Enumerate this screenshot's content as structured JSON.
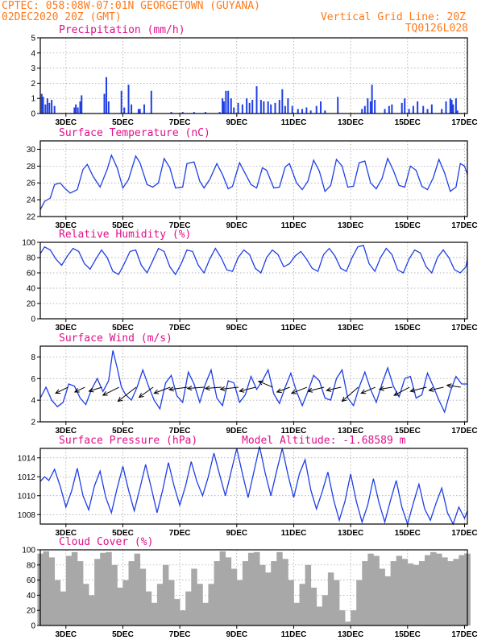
{
  "header": {
    "line1": "CPTEC:  058:08W-07:01N  GEORGETOWN (GUYANA)",
    "line2_left": "02DEC2020 20Z (GMT)",
    "line2_right": "Vertical Grid Line: 20Z",
    "line3_right": "TQ0126L028"
  },
  "colors": {
    "header_text": "#ff7a1a",
    "title_text": "#e0108a",
    "series_line": "#1f3fe6",
    "cloud_fill": "#a8a8a8",
    "wind_arrow": "#000000"
  },
  "x_axis": {
    "ticks": [
      "3DEC",
      "5DEC",
      "7DEC",
      "9DEC",
      "11DEC",
      "13DEC",
      "15DEC",
      "17DEC"
    ],
    "tick_days": [
      3,
      5,
      7,
      9,
      11,
      13,
      15,
      17
    ],
    "range_days": [
      2.1,
      17.1
    ],
    "grid": "vertical dotted at 20Z"
  },
  "chart_data": [
    {
      "id": "precipitation",
      "type": "bar",
      "title": "Precipitation (mm/h)",
      "ylim": [
        0,
        5
      ],
      "yticks": [
        0,
        1,
        2,
        3,
        4,
        5
      ],
      "grid": true,
      "x": [
        2.15,
        2.2,
        2.28,
        2.35,
        2.42,
        2.5,
        2.6,
        3.3,
        3.35,
        3.42,
        3.5,
        3.55,
        4.35,
        4.42,
        4.5,
        4.95,
        5.05,
        5.2,
        5.3,
        5.55,
        5.6,
        5.75,
        6.0,
        6.7,
        7.1,
        7.5,
        7.9,
        8.4,
        8.5,
        8.55,
        8.62,
        8.7,
        8.8,
        8.9,
        9.05,
        9.2,
        9.35,
        9.45,
        9.55,
        9.7,
        9.85,
        9.95,
        10.1,
        10.2,
        10.35,
        10.5,
        10.6,
        10.7,
        10.8,
        10.95,
        11.15,
        11.3,
        11.45,
        11.6,
        11.8,
        11.95,
        12.1,
        12.55,
        13.4,
        13.5,
        13.6,
        13.7,
        13.75,
        13.85,
        14.2,
        14.35,
        14.45,
        14.8,
        14.9,
        15.05,
        15.2,
        15.35,
        15.55,
        15.7,
        15.85,
        16.2,
        16.35,
        16.5,
        16.55,
        16.6,
        16.7,
        16.75
      ],
      "values": [
        1.3,
        1.1,
        0.6,
        1.0,
        0.7,
        0.9,
        0.5,
        0.4,
        0.6,
        0.4,
        0.8,
        1.2,
        1.3,
        2.4,
        0.8,
        1.5,
        0.4,
        1.9,
        0.6,
        0.3,
        0.3,
        0.6,
        1.5,
        0.1,
        0.1,
        0.1,
        0.1,
        0.1,
        1.0,
        0.8,
        1.5,
        1.5,
        1.0,
        0.4,
        0.7,
        0.6,
        1.0,
        0.7,
        0.9,
        1.8,
        0.9,
        0.8,
        0.8,
        0.6,
        0.7,
        0.9,
        1.6,
        0.5,
        1.0,
        0.5,
        0.3,
        0.3,
        0.4,
        0.2,
        0.5,
        0.8,
        0.2,
        1.1,
        0.3,
        0.5,
        1.0,
        0.8,
        1.9,
        0.9,
        0.3,
        0.5,
        0.6,
        0.7,
        1.0,
        0.3,
        0.5,
        0.8,
        0.5,
        0.3,
        0.6,
        0.3,
        0.8,
        1.0,
        0.9,
        0.6,
        1.0,
        0.2
      ]
    },
    {
      "id": "temperature",
      "type": "line",
      "title": "Surface Temperature (nC)",
      "ylim": [
        22,
        31
      ],
      "yticks": [
        22,
        24,
        26,
        28,
        30
      ],
      "grid": true,
      "x": [
        2.1,
        2.25,
        2.45,
        2.6,
        2.8,
        2.95,
        3.15,
        3.4,
        3.6,
        3.75,
        3.95,
        4.2,
        4.45,
        4.6,
        4.8,
        5.0,
        5.2,
        5.45,
        5.6,
        5.85,
        6.05,
        6.25,
        6.45,
        6.65,
        6.85,
        7.1,
        7.25,
        7.5,
        7.7,
        7.85,
        8.05,
        8.3,
        8.5,
        8.7,
        8.85,
        9.1,
        9.3,
        9.5,
        9.7,
        9.9,
        10.05,
        10.3,
        10.5,
        10.7,
        10.85,
        11.1,
        11.3,
        11.5,
        11.7,
        11.9,
        12.1,
        12.3,
        12.5,
        12.7,
        12.9,
        13.1,
        13.3,
        13.5,
        13.7,
        13.9,
        14.1,
        14.3,
        14.5,
        14.7,
        14.9,
        15.1,
        15.3,
        15.5,
        15.7,
        15.9,
        16.1,
        16.3,
        16.5,
        16.7,
        16.85,
        17.0,
        17.1
      ],
      "values": [
        22.8,
        23.8,
        24.2,
        25.8,
        26.0,
        25.4,
        24.8,
        25.2,
        27.6,
        28.2,
        26.8,
        25.5,
        27.6,
        29.3,
        27.8,
        25.4,
        26.4,
        29.2,
        28.4,
        25.8,
        25.5,
        26.0,
        28.9,
        27.8,
        25.4,
        25.5,
        28.3,
        28.5,
        26.2,
        25.4,
        26.4,
        28.3,
        27.0,
        25.3,
        25.6,
        28.4,
        27.1,
        25.8,
        25.4,
        27.8,
        27.5,
        25.4,
        25.5,
        27.9,
        28.3,
        26.0,
        25.2,
        26.2,
        28.7,
        27.4,
        25.0,
        25.7,
        28.8,
        28.0,
        25.5,
        25.6,
        28.4,
        28.6,
        26.0,
        25.3,
        26.5,
        28.9,
        27.5,
        25.7,
        25.5,
        28.0,
        27.5,
        25.6,
        25.2,
        26.6,
        28.8,
        27.2,
        25.0,
        25.5,
        28.3,
        28.0,
        27.0
      ]
    },
    {
      "id": "humidity",
      "type": "line",
      "title": "Relative Humidity (%)",
      "ylim": [
        0,
        100
      ],
      "yticks": [
        0,
        20,
        40,
        60,
        80,
        100
      ],
      "grid": true,
      "x": [
        2.1,
        2.25,
        2.45,
        2.65,
        2.85,
        3.05,
        3.25,
        3.45,
        3.65,
        3.85,
        4.05,
        4.25,
        4.45,
        4.65,
        4.85,
        5.05,
        5.25,
        5.45,
        5.65,
        5.85,
        6.05,
        6.25,
        6.45,
        6.65,
        6.85,
        7.05,
        7.25,
        7.45,
        7.65,
        7.85,
        8.05,
        8.25,
        8.45,
        8.65,
        8.85,
        9.05,
        9.25,
        9.45,
        9.65,
        9.85,
        10.05,
        10.25,
        10.45,
        10.65,
        10.85,
        11.05,
        11.25,
        11.45,
        11.65,
        11.85,
        12.05,
        12.25,
        12.45,
        12.65,
        12.85,
        13.05,
        13.25,
        13.45,
        13.65,
        13.85,
        14.05,
        14.25,
        14.45,
        14.65,
        14.85,
        15.05,
        15.25,
        15.45,
        15.65,
        15.85,
        16.05,
        16.25,
        16.45,
        16.65,
        16.85,
        17.05,
        17.1
      ],
      "values": [
        85,
        94,
        90,
        78,
        70,
        82,
        92,
        88,
        72,
        65,
        78,
        90,
        80,
        62,
        58,
        72,
        88,
        90,
        70,
        60,
        76,
        92,
        88,
        68,
        58,
        72,
        90,
        88,
        70,
        60,
        78,
        92,
        80,
        64,
        62,
        80,
        90,
        84,
        66,
        60,
        80,
        90,
        84,
        68,
        72,
        82,
        88,
        78,
        66,
        62,
        84,
        92,
        82,
        66,
        62,
        80,
        94,
        96,
        72,
        62,
        80,
        92,
        84,
        64,
        60,
        78,
        90,
        86,
        68,
        60,
        80,
        90,
        80,
        64,
        60,
        68,
        78
      ]
    },
    {
      "id": "wind",
      "type": "line",
      "title": "Surface Wind (m/s)",
      "ylim": [
        2,
        9
      ],
      "yticks": [
        2,
        4,
        6,
        8
      ],
      "grid": true,
      "x": [
        2.1,
        2.3,
        2.5,
        2.7,
        2.9,
        3.1,
        3.3,
        3.5,
        3.7,
        3.9,
        4.1,
        4.3,
        4.5,
        4.65,
        4.8,
        4.95,
        5.1,
        5.3,
        5.5,
        5.7,
        5.9,
        6.1,
        6.3,
        6.5,
        6.7,
        6.9,
        7.1,
        7.3,
        7.5,
        7.7,
        7.9,
        8.1,
        8.3,
        8.5,
        8.7,
        8.9,
        9.1,
        9.3,
        9.5,
        9.7,
        9.9,
        10.1,
        10.3,
        10.5,
        10.7,
        10.9,
        11.1,
        11.3,
        11.5,
        11.7,
        11.9,
        12.1,
        12.3,
        12.5,
        12.7,
        12.9,
        13.1,
        13.3,
        13.5,
        13.7,
        13.9,
        14.1,
        14.3,
        14.5,
        14.7,
        14.9,
        15.1,
        15.3,
        15.5,
        15.7,
        15.9,
        16.1,
        16.3,
        16.5,
        16.7,
        16.9,
        17.1
      ],
      "values": [
        4.2,
        5.2,
        4.0,
        3.4,
        3.8,
        5.5,
        5.3,
        4.2,
        3.6,
        5.0,
        6.0,
        4.8,
        5.8,
        8.6,
        7.0,
        5.2,
        4.5,
        4.0,
        5.2,
        6.8,
        5.3,
        4.0,
        3.2,
        5.6,
        6.3,
        4.4,
        3.8,
        6.6,
        5.5,
        3.8,
        5.5,
        6.8,
        4.2,
        3.5,
        5.8,
        5.6,
        3.8,
        4.5,
        6.2,
        5.0,
        5.8,
        6.8,
        4.6,
        3.7,
        5.2,
        6.5,
        4.8,
        3.5,
        4.8,
        6.3,
        5.8,
        4.2,
        4.0,
        6.0,
        6.8,
        4.2,
        3.5,
        5.2,
        6.6,
        5.0,
        3.8,
        5.5,
        7.0,
        5.3,
        4.3,
        6.0,
        6.2,
        4.2,
        4.5,
        6.5,
        5.3,
        4.0,
        2.9,
        4.8,
        6.2,
        5.5,
        5.5
      ],
      "arrows": {
        "x": [
          2.5,
          3.1,
          3.7,
          4.3,
          4.9,
          5.5,
          6.1,
          6.7,
          7.3,
          7.9,
          8.5,
          9.1,
          9.7,
          10.3,
          10.9,
          11.5,
          12.1,
          12.7,
          13.3,
          13.9,
          14.5,
          15.1,
          15.7,
          16.3
        ],
        "u": [
          -3.0,
          -2.5,
          -3.2,
          -4.0,
          -4.5,
          -3.5,
          -4.0,
          -4.5,
          -4.2,
          -4.0,
          -4.5,
          -4.0,
          -3.5,
          -3.2,
          -3.8,
          -4.0,
          -3.6,
          -4.0,
          -3.5,
          -3.2,
          -3.8,
          -4.0,
          -3.6,
          -3.4
        ],
        "v": [
          -1.5,
          -1.2,
          -1.0,
          -2.0,
          -3.5,
          -2.5,
          -1.5,
          -0.6,
          -0.3,
          -0.3,
          -0.5,
          -1.0,
          1.5,
          -1.2,
          -1.5,
          -1.0,
          -0.8,
          -3.5,
          -1.5,
          -0.5,
          -2.0,
          -1.0,
          -0.8,
          0.5
        ]
      }
    },
    {
      "id": "pressure",
      "type": "line",
      "title": "Surface Pressure (hPa)",
      "annotation": "Model Altitude: -1.68589 m",
      "ylim": [
        1007,
        1015
      ],
      "yticks": [
        1008,
        1010,
        1012,
        1014
      ],
      "grid": true,
      "x": [
        2.1,
        2.25,
        2.4,
        2.6,
        2.8,
        3.0,
        3.2,
        3.4,
        3.6,
        3.8,
        4.0,
        4.2,
        4.4,
        4.6,
        4.8,
        5.0,
        5.2,
        5.4,
        5.6,
        5.8,
        6.0,
        6.2,
        6.4,
        6.6,
        6.8,
        7.0,
        7.2,
        7.4,
        7.6,
        7.8,
        8.0,
        8.2,
        8.4,
        8.6,
        8.8,
        9.0,
        9.2,
        9.4,
        9.6,
        9.8,
        10.0,
        10.2,
        10.4,
        10.6,
        10.8,
        11.0,
        11.2,
        11.4,
        11.6,
        11.8,
        12.0,
        12.2,
        12.4,
        12.6,
        12.8,
        13.0,
        13.2,
        13.4,
        13.6,
        13.8,
        14.0,
        14.2,
        14.4,
        14.6,
        14.8,
        15.0,
        15.2,
        15.4,
        15.6,
        15.8,
        16.0,
        16.2,
        16.4,
        16.6,
        16.8,
        17.0,
        17.1
      ],
      "values": [
        1011.5,
        1012.0,
        1011.6,
        1012.8,
        1011.0,
        1008.8,
        1010.5,
        1012.9,
        1010.0,
        1008.5,
        1011.0,
        1012.6,
        1009.8,
        1008.2,
        1010.8,
        1013.1,
        1010.6,
        1008.4,
        1010.8,
        1013.3,
        1010.8,
        1008.2,
        1010.6,
        1013.5,
        1011.0,
        1009.0,
        1011.0,
        1013.6,
        1011.5,
        1010.0,
        1012.0,
        1014.5,
        1012.2,
        1010.0,
        1012.5,
        1015.0,
        1012.3,
        1009.8,
        1012.5,
        1015.2,
        1012.4,
        1010.0,
        1012.6,
        1015.0,
        1012.2,
        1009.8,
        1012.3,
        1013.8,
        1010.6,
        1008.6,
        1010.4,
        1012.5,
        1009.6,
        1007.4,
        1009.4,
        1012.3,
        1009.4,
        1007.2,
        1009.0,
        1011.8,
        1009.2,
        1007.2,
        1009.5,
        1011.6,
        1008.8,
        1007.0,
        1009.2,
        1011.2,
        1008.6,
        1007.4,
        1009.2,
        1010.8,
        1008.2,
        1007.0,
        1008.8,
        1007.6,
        1008.4
      ]
    },
    {
      "id": "cloud",
      "type": "area",
      "title": "Cloud Cover (%)",
      "ylim": [
        0,
        100
      ],
      "yticks": [
        0,
        20,
        40,
        60,
        80,
        100
      ],
      "grid": true,
      "x": [
        2.1,
        2.3,
        2.5,
        2.7,
        2.9,
        3.1,
        3.3,
        3.5,
        3.7,
        3.9,
        4.1,
        4.3,
        4.5,
        4.7,
        4.9,
        5.1,
        5.3,
        5.5,
        5.7,
        5.9,
        6.1,
        6.3,
        6.5,
        6.7,
        6.9,
        7.1,
        7.3,
        7.5,
        7.7,
        7.9,
        8.1,
        8.3,
        8.5,
        8.7,
        8.9,
        9.1,
        9.3,
        9.5,
        9.7,
        9.9,
        10.1,
        10.3,
        10.5,
        10.7,
        10.9,
        11.1,
        11.3,
        11.5,
        11.7,
        11.9,
        12.1,
        12.3,
        12.5,
        12.7,
        12.9,
        13.1,
        13.3,
        13.5,
        13.7,
        13.9,
        14.1,
        14.3,
        14.5,
        14.7,
        14.9,
        15.1,
        15.3,
        15.5,
        15.7,
        15.9,
        16.1,
        16.3,
        16.5,
        16.7,
        16.9,
        17.1
      ],
      "values": [
        95,
        98,
        90,
        60,
        45,
        92,
        97,
        85,
        55,
        40,
        88,
        96,
        97,
        80,
        50,
        60,
        85,
        95,
        75,
        45,
        30,
        55,
        80,
        60,
        35,
        20,
        45,
        75,
        55,
        30,
        55,
        85,
        98,
        90,
        75,
        60,
        85,
        96,
        97,
        80,
        70,
        85,
        97,
        88,
        60,
        30,
        55,
        80,
        50,
        25,
        40,
        70,
        60,
        20,
        5,
        20,
        60,
        85,
        95,
        92,
        75,
        65,
        85,
        92,
        88,
        82,
        80,
        85,
        93,
        97,
        95,
        90,
        85,
        88,
        93,
        95
      ]
    }
  ]
}
